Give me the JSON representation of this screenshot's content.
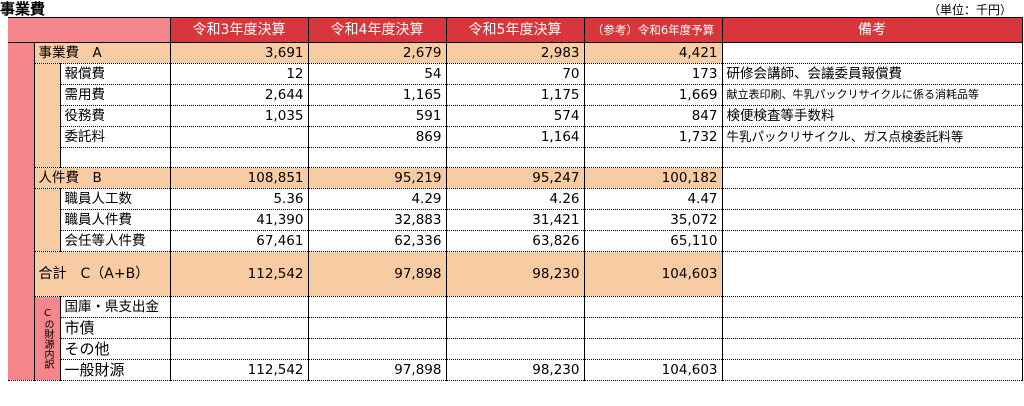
{
  "page_title": "事業費",
  "unit": "（単位：千円）",
  "header": {
    "col1": "令和3年度決算",
    "col2": "令和4年度決算",
    "col3": "令和5年度決算",
    "col4": "（参考）令和6年度予算",
    "notes": "備考"
  },
  "section_a": {
    "label": "事業費　A",
    "values": [
      "3,691",
      "2,679",
      "2,983",
      "4,421"
    ],
    "rows": [
      {
        "label": "報償費",
        "values": [
          "12",
          "54",
          "70",
          "173"
        ],
        "note": "研修会講師、会議委員報償費"
      },
      {
        "label": "需用費",
        "values": [
          "2,644",
          "1,165",
          "1,175",
          "1,669"
        ],
        "note": "献立表印刷、牛乳パックリサイクルに係る消耗品等"
      },
      {
        "label": "役務費",
        "values": [
          "1,035",
          "591",
          "574",
          "847"
        ],
        "note": "検便検査等手数料"
      },
      {
        "label": "委託料",
        "values": [
          "",
          "869",
          "1,164",
          "1,732"
        ],
        "note": "牛乳パックリサイクル、ガス点検委託料等"
      }
    ]
  },
  "section_b": {
    "label": "人件費　B",
    "values": [
      "108,851",
      "95,219",
      "95,247",
      "100,182"
    ],
    "rows": [
      {
        "label": "職員人工数",
        "values": [
          "5.36",
          "4.29",
          "4.26",
          "4.47"
        ]
      },
      {
        "label": "職員人件費",
        "values": [
          "41,390",
          "32,883",
          "31,421",
          "35,072"
        ]
      },
      {
        "label": "会任等人件費",
        "values": [
          "67,461",
          "62,336",
          "63,826",
          "65,110"
        ]
      }
    ]
  },
  "total": {
    "label": "合計　C（A+B）",
    "values": [
      "112,542",
      "97,898",
      "98,230",
      "104,603"
    ]
  },
  "funding": {
    "side_label": "Cの財源内訳",
    "rows": [
      {
        "label": "国庫・県支出金",
        "values": [
          "",
          "",
          "",
          ""
        ]
      },
      {
        "label": "市債",
        "values": [
          "",
          "",
          "",
          ""
        ]
      },
      {
        "label": "その他",
        "values": [
          "",
          "",
          "",
          ""
        ]
      },
      {
        "label": "一般財源",
        "values": [
          "112,542",
          "97,898",
          "98,230",
          "104,603"
        ]
      }
    ]
  },
  "colors": {
    "header_bg": "#d9363b",
    "side_bg": "#f4858a",
    "highlight_bg": "#f8cba2"
  }
}
